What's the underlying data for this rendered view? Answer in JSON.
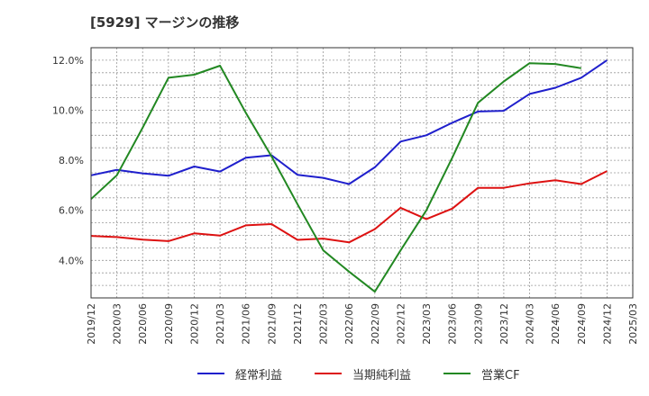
{
  "title": "[5929]  マージンの推移",
  "chart_data": {
    "type": "line",
    "title": "[5929]  マージンの推移",
    "x": [
      "2019/12",
      "2020/03",
      "2020/06",
      "2020/09",
      "2020/12",
      "2021/03",
      "2021/06",
      "2021/09",
      "2021/12",
      "2022/03",
      "2022/06",
      "2022/09",
      "2022/12",
      "2023/03",
      "2023/06",
      "2023/09",
      "2023/12",
      "2024/03",
      "2024/06",
      "2024/09",
      "2024/12",
      "2025/03"
    ],
    "ylim": [
      2.5,
      12.5
    ],
    "yticks": [
      4.0,
      6.0,
      8.0,
      10.0,
      12.0
    ],
    "ytick_labels": [
      "4.0%",
      "6.0%",
      "8.0%",
      "10.0%",
      "12.0%"
    ],
    "grid": true,
    "legend_position": "bottom",
    "series": [
      {
        "name": "経常利益",
        "color": "#1f1fcc",
        "values": [
          7.4,
          7.62,
          7.48,
          7.38,
          7.75,
          7.55,
          8.1,
          8.2,
          7.42,
          7.3,
          7.05,
          7.72,
          8.75,
          9.0,
          9.5,
          9.95,
          9.98,
          10.65,
          10.9,
          11.3,
          12.0,
          null
        ]
      },
      {
        "name": "当期純利益",
        "color": "#dd1111",
        "values": [
          4.98,
          4.93,
          4.83,
          4.77,
          5.08,
          4.99,
          5.4,
          5.45,
          4.82,
          4.87,
          4.72,
          5.25,
          6.1,
          5.65,
          6.07,
          6.9,
          6.9,
          7.08,
          7.2,
          7.05,
          7.57,
          null
        ]
      },
      {
        "name": "営業CF",
        "color": "#228822",
        "values": [
          6.45,
          7.4,
          9.3,
          11.3,
          11.42,
          11.78,
          9.9,
          8.15,
          6.25,
          4.4,
          3.55,
          2.75,
          4.4,
          6.0,
          8.1,
          10.3,
          11.15,
          11.88,
          11.85,
          11.68,
          null,
          null
        ]
      }
    ]
  }
}
